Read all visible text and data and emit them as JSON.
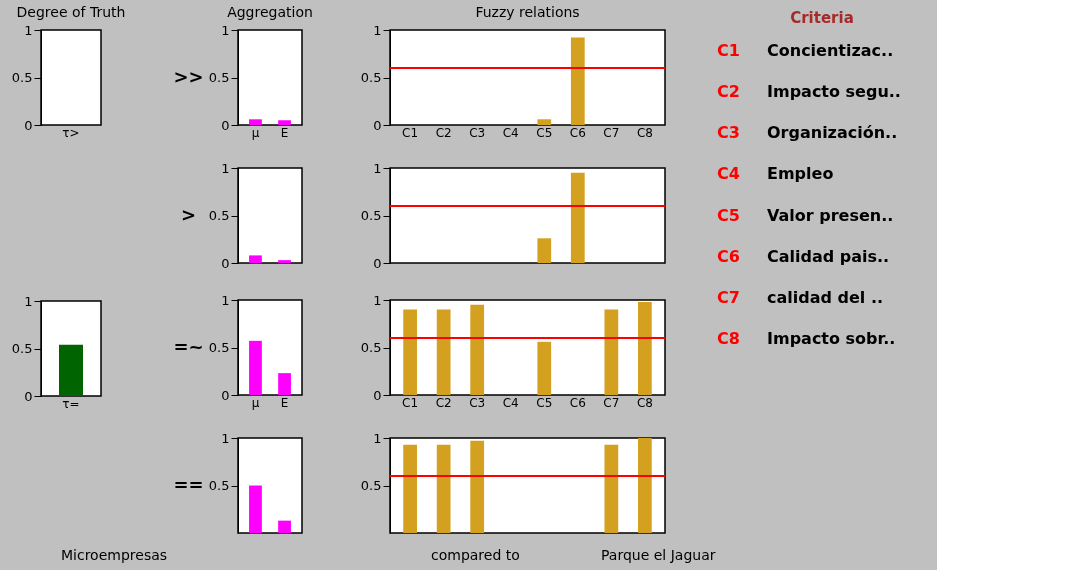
{
  "chart_data": [
    {
      "type": "bar",
      "title": "Degree of Truth",
      "categories": [
        "τ>"
      ],
      "values": [
        0
      ],
      "color": "#006400",
      "ylim": [
        0,
        1
      ],
      "yticks": [
        0,
        0.5,
        1
      ],
      "grid": false
    },
    {
      "type": "bar",
      "categories": [
        "τ="
      ],
      "values": [
        0.54
      ],
      "color": "#006400",
      "ylim": [
        0,
        1
      ],
      "yticks": [
        0,
        0.5,
        1
      ],
      "grid": false
    },
    {
      "type": "bar",
      "title": "Aggregation",
      "ylabel": ">>",
      "categories": [
        "μ",
        "E"
      ],
      "values": [
        0.06,
        0.05
      ],
      "color": "#ff00ff",
      "ylim": [
        0,
        1
      ],
      "yticks": [
        0,
        0.5,
        1
      ],
      "grid": false
    },
    {
      "type": "bar",
      "ylabel": ">",
      "categories": [
        null,
        null
      ],
      "values": [
        0.08,
        0.03
      ],
      "color": "#ff00ff",
      "ylim": [
        0,
        1
      ],
      "yticks": [
        0,
        0.5,
        1
      ],
      "grid": false,
      "tick_labels": "y"
    },
    {
      "type": "bar",
      "ylabel": "=~",
      "categories": [
        "μ",
        "E"
      ],
      "values": [
        0.57,
        0.23
      ],
      "color": "#ff00ff",
      "ylim": [
        0,
        1
      ],
      "yticks": [
        0,
        0.5,
        1
      ],
      "grid": false
    },
    {
      "type": "bar",
      "ylabel": "==",
      "categories": [
        null,
        null
      ],
      "values": [
        0.5,
        0.13
      ],
      "color": "#ff00ff",
      "ylim": [
        0,
        1
      ],
      "yticks": [
        0.5,
        1
      ],
      "grid": false,
      "tick_labels": "y"
    },
    {
      "type": "bar",
      "title": "Fuzzy relations",
      "categories": [
        "C1",
        "C2",
        "C3",
        "C4",
        "C5",
        "C6",
        "C7",
        "C8"
      ],
      "values": [
        0,
        0,
        0,
        0,
        0.06,
        0.92,
        0,
        0
      ],
      "color": "#d4a020",
      "ylim": [
        0,
        1
      ],
      "yticks": [
        0,
        0.5,
        1
      ],
      "grid": false,
      "ref_lines": [
        {
          "axis": "y",
          "value": 0.6,
          "color": "#ff0000"
        }
      ]
    },
    {
      "type": "bar",
      "categories": [
        null,
        null,
        null,
        null,
        null,
        null,
        null,
        null
      ],
      "values": [
        0,
        0,
        0,
        0,
        0.26,
        0.95,
        0,
        0
      ],
      "color": "#d4a020",
      "ylim": [
        0,
        1
      ],
      "yticks": [
        0,
        0.5,
        1
      ],
      "grid": false,
      "tick_labels": "y",
      "ref_lines": [
        {
          "axis": "y",
          "value": 0.6,
          "color": "#ff0000"
        }
      ]
    },
    {
      "type": "bar",
      "categories": [
        "C1",
        "C2",
        "C3",
        "C4",
        "C5",
        "C6",
        "C7",
        "C8"
      ],
      "values": [
        0.9,
        0.9,
        0.95,
        0,
        0.56,
        0,
        0.9,
        0.98
      ],
      "color": "#d4a020",
      "ylim": [
        0,
        1
      ],
      "yticks": [
        0,
        0.5,
        1
      ],
      "grid": false,
      "ref_lines": [
        {
          "axis": "y",
          "value": 0.6,
          "color": "#ff0000"
        }
      ]
    },
    {
      "type": "bar",
      "categories": [
        null,
        null,
        null,
        null,
        null,
        null,
        null,
        null
      ],
      "values": [
        0.93,
        0.93,
        0.97,
        0,
        0,
        0,
        0.93,
        1.0
      ],
      "color": "#d4a020",
      "ylim": [
        0,
        1
      ],
      "yticks": [
        0.5,
        1
      ],
      "grid": false,
      "tick_labels": "y",
      "ref_lines": [
        {
          "axis": "y",
          "value": 0.6,
          "color": "#ff0000"
        }
      ]
    },
    {
      "type": "other",
      "title": "Criteria",
      "annotations": [
        "C1 Concientizac..",
        "C2 Impacto segu..",
        "C3 Organización..",
        "C4 Empleo",
        "C5 Valor presen..",
        "C6 Calidad pais..",
        "C7 calidad del ..",
        "C8 Impacto sobr.."
      ]
    },
    {
      "type": "other",
      "annotations": [
        "Microempresas",
        "compared to",
        "Parque el Jaguar"
      ]
    }
  ]
}
